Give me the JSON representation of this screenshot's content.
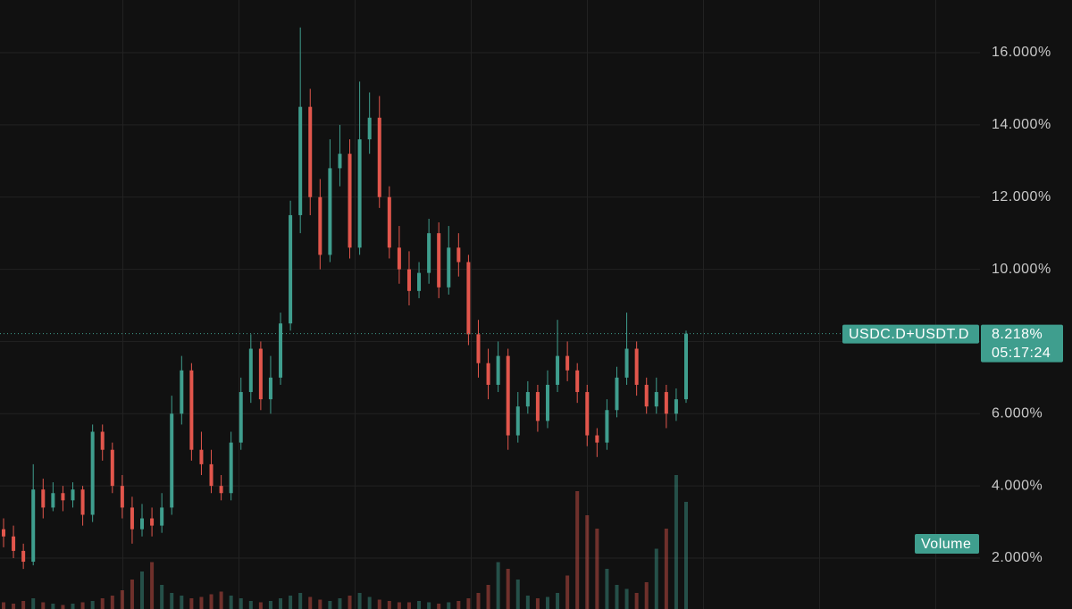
{
  "chart_data": {
    "type": "candlestick",
    "symbol": "USDC.D+USDT.D",
    "last_price": {
      "value": 8.218,
      "label": "8.218%"
    },
    "countdown": "05:17:24",
    "volume_label": "Volume",
    "up_color": "#3f9e8e",
    "down_color": "#e2564c",
    "grid": true,
    "ylim": [
      0.59,
      17.46
    ],
    "yticks": [
      {
        "value": 2,
        "label": "2.000%"
      },
      {
        "value": 4,
        "label": "4.000%"
      },
      {
        "value": 6,
        "label": "6.000%"
      },
      {
        "value": 8,
        "label": "8.000%"
      },
      {
        "value": 10,
        "label": "10.000%"
      },
      {
        "value": 12,
        "label": "12.000%"
      },
      {
        "value": 14,
        "label": "14.000%"
      },
      {
        "value": 16,
        "label": "16.000%"
      }
    ],
    "open": [
      2.8,
      2.6,
      2.2,
      1.9,
      3.9,
      3.4,
      3.8,
      3.6,
      3.9,
      3.2,
      5.5,
      5.0,
      4.0,
      3.4,
      2.8,
      3.1,
      2.9,
      3.4,
      6.0,
      7.2,
      5.0,
      4.6,
      4.0,
      3.8,
      5.2,
      6.6,
      7.8,
      6.4,
      7.0,
      8.5,
      11.5,
      14.5,
      12.0,
      10.4,
      12.8,
      13.2,
      10.6,
      13.6,
      14.2,
      12.0,
      10.6,
      10.0,
      9.4,
      9.9,
      11.0,
      9.5,
      10.6,
      10.2,
      8.2,
      7.4,
      6.8,
      7.6,
      5.4,
      6.2,
      6.6,
      5.8,
      6.8,
      7.6,
      7.2,
      6.6,
      5.4,
      5.2,
      6.1,
      7.0,
      7.8,
      6.8,
      6.2,
      6.6,
      6.0,
      6.4
    ],
    "high": [
      3.1,
      2.9,
      2.4,
      4.6,
      4.2,
      4.1,
      4.0,
      4.1,
      4.0,
      5.7,
      5.7,
      5.2,
      4.3,
      3.7,
      3.5,
      3.4,
      3.8,
      6.5,
      7.6,
      7.4,
      5.5,
      5.0,
      4.3,
      5.5,
      7.0,
      8.2,
      8.0,
      7.6,
      8.8,
      11.9,
      16.7,
      15.0,
      12.5,
      13.6,
      14.0,
      13.6,
      15.2,
      14.9,
      14.8,
      12.3,
      11.2,
      10.5,
      10.2,
      11.4,
      11.3,
      11.2,
      11.0,
      10.4,
      8.6,
      7.8,
      8.0,
      7.8,
      6.6,
      6.9,
      6.8,
      7.2,
      8.6,
      8.0,
      7.4,
      6.8,
      5.6,
      6.4,
      7.3,
      8.8,
      8.0,
      7.0,
      7.0,
      6.8,
      6.7,
      8.3
    ],
    "low": [
      2.3,
      2.0,
      1.7,
      1.8,
      3.1,
      3.3,
      3.3,
      3.4,
      2.9,
      3.0,
      4.7,
      3.8,
      3.1,
      2.4,
      2.6,
      2.6,
      2.7,
      3.2,
      5.7,
      4.7,
      4.3,
      3.8,
      3.6,
      3.6,
      5.0,
      6.3,
      6.1,
      6.0,
      6.8,
      8.3,
      11.0,
      11.5,
      10.0,
      10.2,
      12.3,
      10.3,
      10.4,
      13.2,
      11.7,
      10.3,
      9.6,
      9.0,
      9.2,
      9.6,
      9.2,
      9.3,
      9.8,
      7.9,
      7.0,
      6.4,
      6.6,
      5.0,
      5.2,
      6.0,
      5.5,
      5.6,
      6.6,
      6.9,
      6.3,
      5.1,
      4.8,
      5.0,
      5.9,
      6.8,
      6.5,
      6.0,
      6.0,
      5.6,
      5.8,
      6.3
    ],
    "close": [
      2.6,
      2.2,
      1.9,
      3.9,
      3.4,
      3.8,
      3.6,
      3.9,
      3.2,
      5.5,
      5.0,
      4.0,
      3.4,
      2.8,
      3.1,
      2.9,
      3.4,
      6.0,
      7.2,
      5.0,
      4.6,
      4.0,
      3.8,
      5.2,
      6.6,
      7.8,
      6.4,
      7.0,
      8.5,
      11.5,
      14.5,
      12.0,
      10.4,
      12.8,
      13.2,
      10.6,
      13.6,
      14.2,
      12.0,
      10.6,
      10.0,
      9.4,
      9.9,
      11.0,
      9.5,
      10.6,
      10.2,
      8.2,
      7.4,
      6.8,
      7.6,
      5.4,
      6.2,
      6.6,
      5.8,
      6.8,
      7.6,
      7.2,
      6.6,
      5.4,
      5.2,
      6.1,
      7.0,
      7.8,
      6.8,
      6.2,
      6.6,
      6.0,
      6.4,
      8.218
    ],
    "volume": [
      5,
      4,
      6,
      8,
      5,
      4,
      3,
      4,
      5,
      6,
      8,
      10,
      14,
      22,
      28,
      35,
      18,
      12,
      10,
      8,
      9,
      11,
      13,
      10,
      8,
      6,
      5,
      6,
      8,
      10,
      12,
      9,
      7,
      6,
      8,
      10,
      12,
      9,
      7,
      6,
      5,
      5,
      6,
      5,
      4,
      5,
      6,
      8,
      12,
      18,
      35,
      30,
      22,
      10,
      8,
      9,
      12,
      25,
      88,
      70,
      60,
      30,
      18,
      15,
      12,
      20,
      45,
      60,
      100,
      80
    ],
    "volume_ylim": [
      0,
      100
    ]
  }
}
